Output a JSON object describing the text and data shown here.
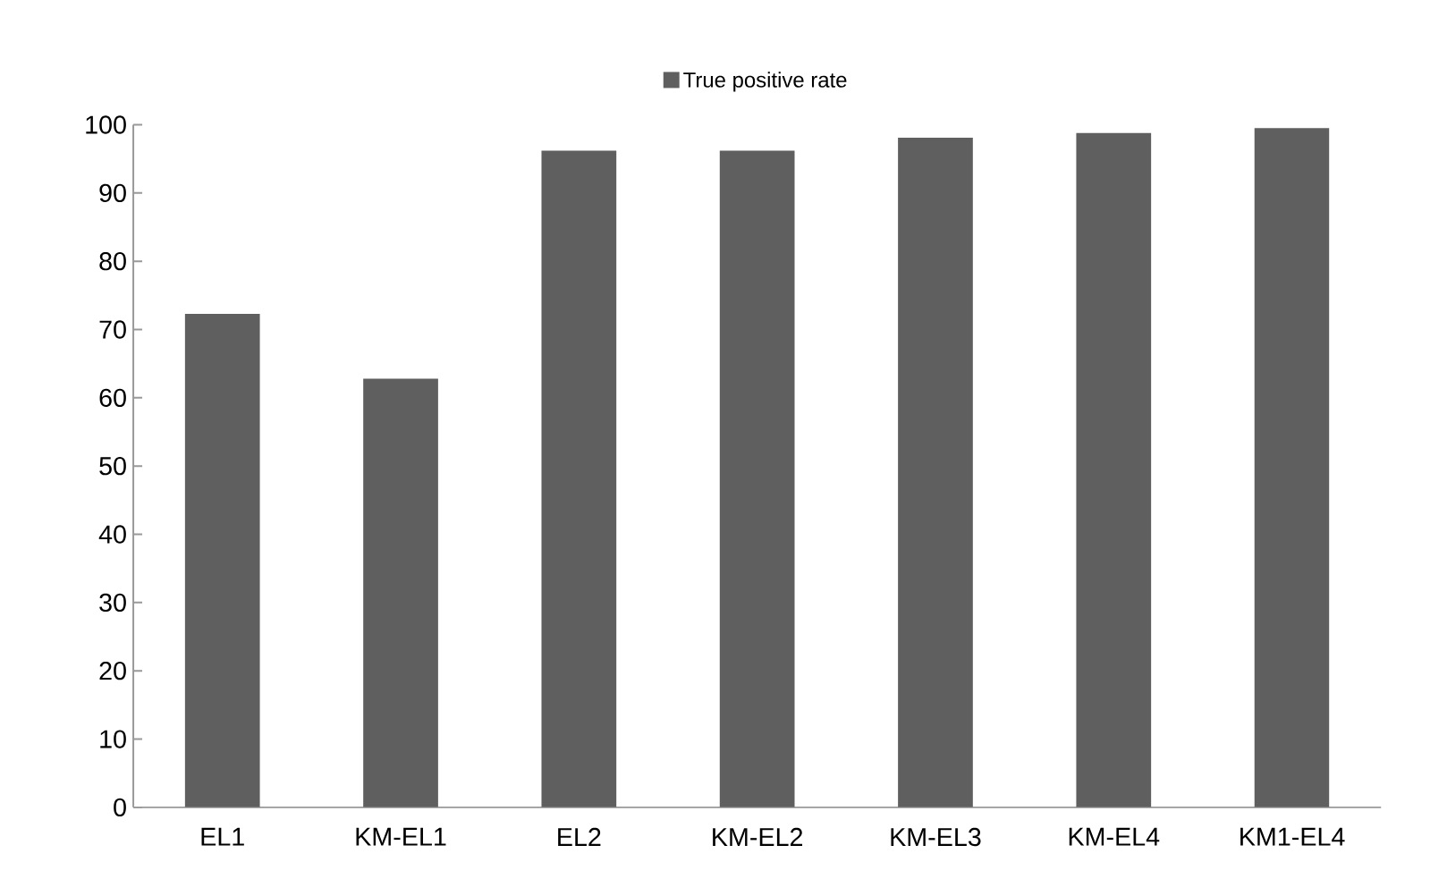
{
  "chart_data": {
    "type": "bar",
    "categories": [
      "EL1",
      "KM-EL1",
      "EL2",
      "KM-EL2",
      "KM-EL3",
      "KM-EL4",
      "KM1-EL4"
    ],
    "series": [
      {
        "name": "True positive rate",
        "color": "#5f5f5f",
        "values": [
          72.3,
          62.8,
          96.2,
          96.2,
          98.1,
          98.8,
          99.5
        ]
      }
    ],
    "ylim": [
      0,
      100
    ],
    "yticks": [
      0,
      10,
      20,
      30,
      40,
      50,
      60,
      70,
      80,
      90,
      100
    ],
    "grid": false,
    "legend": "top"
  }
}
